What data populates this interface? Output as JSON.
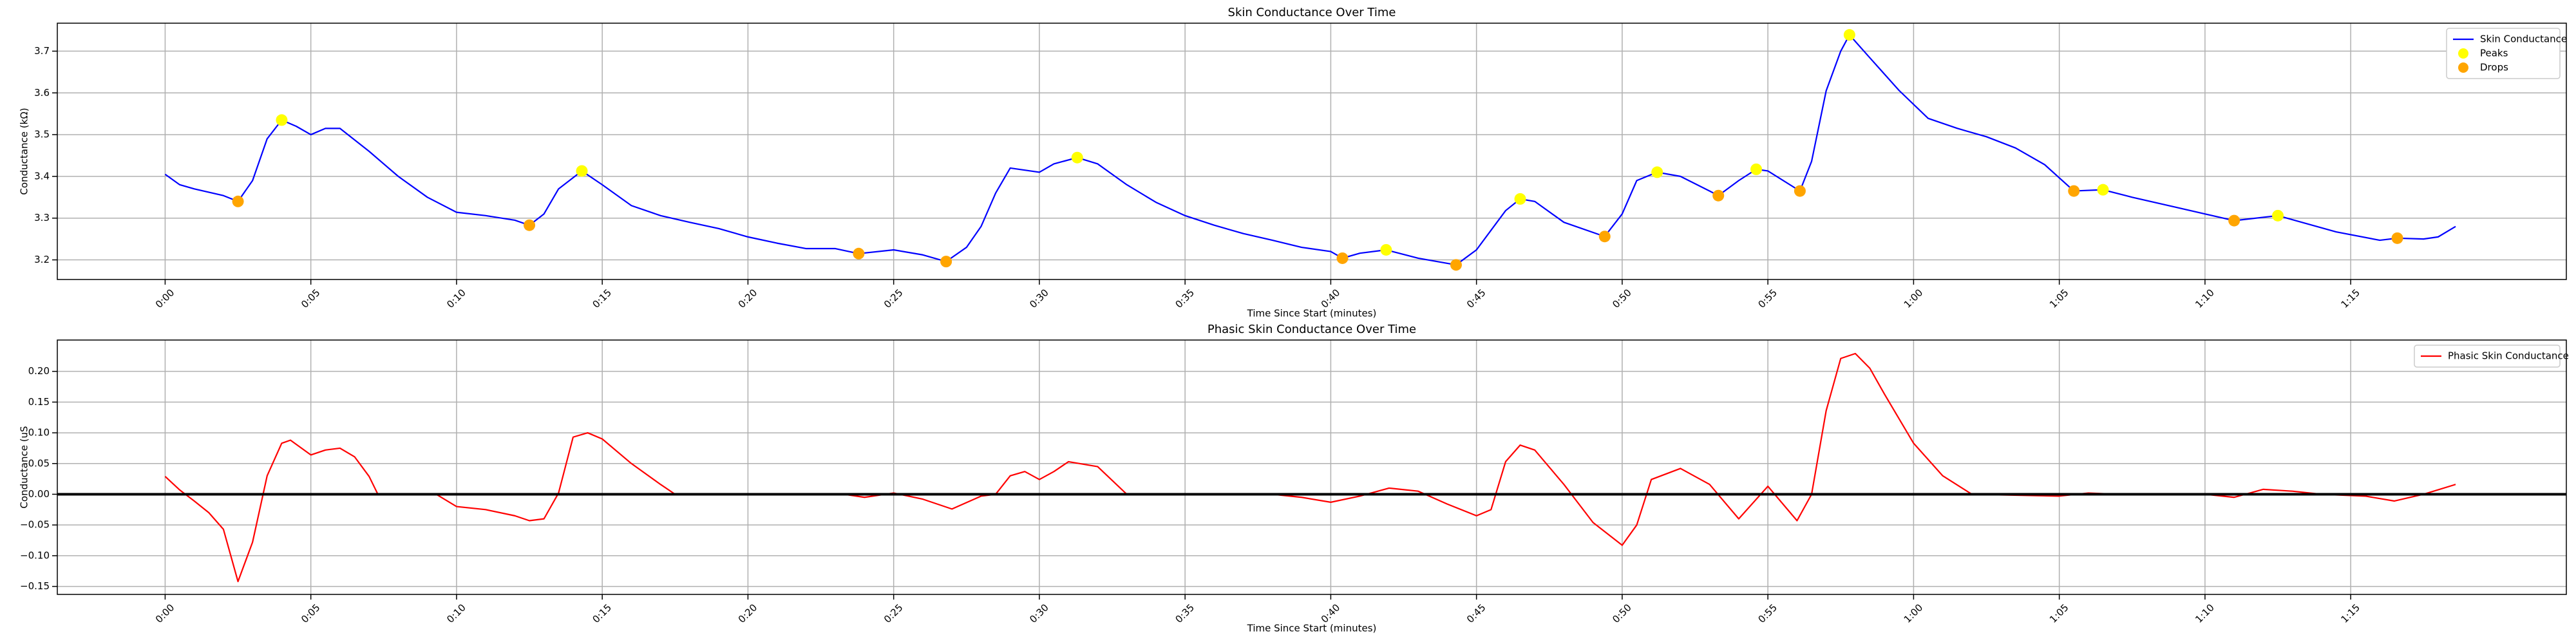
{
  "chart_data": [
    {
      "type": "line",
      "title": "Skin Conductance Over Time",
      "x_label": "Time Since Start (minutes)",
      "y_label": "Conductance (kΩ)",
      "xlim": [
        -3.7,
        82.4
      ],
      "ylim": [
        3.153,
        3.767
      ],
      "grid": true,
      "legend": "upper right",
      "xticks": [
        {
          "value": 0,
          "label": "0:00"
        },
        {
          "value": 5,
          "label": "0:05"
        },
        {
          "value": 10,
          "label": "0:10"
        },
        {
          "value": 15,
          "label": "0:15"
        },
        {
          "value": 20,
          "label": "0:20"
        },
        {
          "value": 25,
          "label": "0:25"
        },
        {
          "value": 30,
          "label": "0:30"
        },
        {
          "value": 35,
          "label": "0:35"
        },
        {
          "value": 40,
          "label": "0:40"
        },
        {
          "value": 45,
          "label": "0:45"
        },
        {
          "value": 50,
          "label": "0:50"
        },
        {
          "value": 55,
          "label": "0:55"
        },
        {
          "value": 60,
          "label": "1:00"
        },
        {
          "value": 65,
          "label": "1:05"
        },
        {
          "value": 70,
          "label": "1:10"
        },
        {
          "value": 75,
          "label": "1:15"
        }
      ],
      "yticks": [
        3.2,
        3.3,
        3.4,
        3.5,
        3.6,
        3.7
      ],
      "x": [
        0,
        0.5,
        1,
        2,
        2.5,
        3,
        3.5,
        4,
        4.5,
        5,
        5.5,
        6,
        7,
        8,
        9,
        10,
        11,
        12,
        12.5,
        13,
        13.5,
        14.3,
        15,
        16,
        17,
        18,
        19,
        20,
        21,
        22,
        23,
        23.8,
        25,
        26,
        26.8,
        27.5,
        28,
        28.5,
        29,
        30,
        30.5,
        31.3,
        32,
        33,
        34,
        35,
        36,
        37,
        38,
        39,
        40,
        40.4,
        41,
        41.9,
        43,
        44.3,
        45,
        46,
        46.5,
        47,
        48,
        49.4,
        50,
        50.5,
        51.2,
        52,
        53,
        53.3,
        54,
        54.6,
        55,
        56.1,
        56.5,
        57,
        57.5,
        57.8,
        58.5,
        59.5,
        60.5,
        61.5,
        62.5,
        63.5,
        64.5,
        65.5,
        66.5,
        67.5,
        69,
        71,
        72.5,
        74.5,
        76,
        76.6,
        77.5,
        78,
        78.6
      ],
      "series": [
        {
          "name": "Skin Conductance",
          "type": "line",
          "color": "#0000ff",
          "values": [
            3.405,
            3.38,
            3.37,
            3.354,
            3.34,
            3.39,
            3.49,
            3.535,
            3.52,
            3.5,
            3.515,
            3.515,
            3.46,
            3.4,
            3.35,
            3.314,
            3.306,
            3.295,
            3.283,
            3.31,
            3.37,
            3.413,
            3.38,
            3.33,
            3.306,
            3.29,
            3.275,
            3.255,
            3.24,
            3.227,
            3.227,
            3.215,
            3.224,
            3.212,
            3.196,
            3.23,
            3.28,
            3.36,
            3.42,
            3.41,
            3.43,
            3.445,
            3.43,
            3.38,
            3.338,
            3.306,
            3.283,
            3.263,
            3.247,
            3.23,
            3.22,
            3.204,
            3.216,
            3.224,
            3.204,
            3.188,
            3.224,
            3.318,
            3.346,
            3.34,
            3.29,
            3.256,
            3.31,
            3.39,
            3.41,
            3.4,
            3.365,
            3.354,
            3.39,
            3.417,
            3.413,
            3.365,
            3.436,
            3.605,
            3.7,
            3.739,
            3.684,
            3.606,
            3.539,
            3.515,
            3.495,
            3.468,
            3.428,
            3.365,
            3.368,
            3.35,
            3.326,
            3.294,
            3.306,
            3.267,
            3.247,
            3.252,
            3.25,
            3.255,
            3.28
          ]
        },
        {
          "name": "Peaks",
          "type": "scatter",
          "color": "#ffff00",
          "x": [
            4,
            14.3,
            31.3,
            41.9,
            46.5,
            51.2,
            54.6,
            57.8,
            66.5,
            72.5
          ],
          "values": [
            3.535,
            3.413,
            3.445,
            3.224,
            3.346,
            3.41,
            3.417,
            3.739,
            3.368,
            3.306
          ]
        },
        {
          "name": "Drops",
          "type": "scatter",
          "color": "#ffa500",
          "x": [
            2.5,
            12.5,
            23.8,
            26.8,
            40.4,
            44.3,
            49.4,
            53.3,
            56.1,
            65.5,
            71,
            76.6
          ],
          "values": [
            3.34,
            3.283,
            3.215,
            3.196,
            3.204,
            3.188,
            3.256,
            3.354,
            3.365,
            3.365,
            3.294,
            3.252
          ]
        }
      ]
    },
    {
      "type": "line",
      "title": "Phasic Skin Conductance Over Time",
      "x_label": "Time Since Start (minutes)",
      "y_label": "Conductance (uS",
      "xlim": [
        -3.7,
        82.4
      ],
      "ylim": [
        -0.163,
        0.251
      ],
      "grid": true,
      "legend": "upper right",
      "hline": 0,
      "xticks": [
        {
          "value": 0,
          "label": "0:00"
        },
        {
          "value": 5,
          "label": "0:05"
        },
        {
          "value": 10,
          "label": "0:10"
        },
        {
          "value": 15,
          "label": "0:15"
        },
        {
          "value": 20,
          "label": "0:20"
        },
        {
          "value": 25,
          "label": "0:25"
        },
        {
          "value": 30,
          "label": "0:30"
        },
        {
          "value": 35,
          "label": "0:35"
        },
        {
          "value": 40,
          "label": "0:40"
        },
        {
          "value": 45,
          "label": "0:45"
        },
        {
          "value": 50,
          "label": "0:50"
        },
        {
          "value": 55,
          "label": "0:55"
        },
        {
          "value": 60,
          "label": "1:00"
        },
        {
          "value": 65,
          "label": "1:05"
        },
        {
          "value": 70,
          "label": "1:10"
        },
        {
          "value": 75,
          "label": "1:15"
        }
      ],
      "yticks": [
        {
          "value": -0.15,
          "label": "−0.15"
        },
        {
          "value": -0.1,
          "label": "−0.10"
        },
        {
          "value": -0.05,
          "label": "−0.05"
        },
        {
          "value": 0,
          "label": "0.00"
        },
        {
          "value": 0.05,
          "label": "0.05"
        },
        {
          "value": 0.1,
          "label": "0.10"
        },
        {
          "value": 0.15,
          "label": "0.15"
        },
        {
          "value": 0.2,
          "label": "0.20"
        }
      ],
      "x": [
        0,
        0.5,
        1,
        1.5,
        2,
        2.5,
        3,
        3.5,
        4,
        4.3,
        5,
        5.5,
        6,
        6.5,
        7,
        7.3,
        9.3,
        10,
        11,
        12,
        12.5,
        13,
        13.5,
        14,
        14.5,
        15,
        16,
        17,
        17.5,
        23.3,
        24,
        25,
        26,
        27,
        28,
        28.5,
        29,
        29.5,
        30,
        30.5,
        31,
        32,
        33,
        38,
        39,
        40,
        41,
        42,
        43,
        44,
        45,
        45.5,
        46,
        46.5,
        47,
        48,
        49,
        50,
        50.5,
        51,
        52,
        53,
        54,
        55,
        56,
        56.5,
        57,
        57.5,
        58,
        58.5,
        59,
        60,
        61,
        62,
        65,
        66,
        67,
        70,
        71,
        72,
        73,
        74,
        75.5,
        76.5,
        77.5,
        78.6
      ],
      "series": [
        {
          "name": "Phasic Skin Conductance",
          "type": "line",
          "color": "#ff0000",
          "values": [
            0.029,
            0.007,
            -0.011,
            -0.03,
            -0.057,
            -0.142,
            -0.078,
            0.03,
            0.083,
            0.088,
            0.064,
            0.072,
            0.075,
            0.061,
            0.029,
            0,
            0,
            -0.02,
            -0.025,
            -0.035,
            -0.043,
            -0.04,
            0.002,
            0.093,
            0.1,
            0.09,
            0.05,
            0.016,
            0,
            0,
            -0.005,
            0.002,
            -0.008,
            -0.024,
            -0.003,
            0,
            0.03,
            0.037,
            0.024,
            0.037,
            0.053,
            0.045,
            0,
            0,
            -0.005,
            -0.013,
            -0.003,
            0.01,
            0.005,
            -0.016,
            -0.035,
            -0.025,
            0.053,
            0.08,
            0.072,
            0.016,
            -0.046,
            -0.083,
            -0.05,
            0.024,
            0.042,
            0.016,
            -0.04,
            0.013,
            -0.043,
            0,
            0.136,
            0.221,
            0.229,
            0.205,
            0.163,
            0.083,
            0.03,
            0,
            -0.003,
            0.002,
            0,
            0,
            -0.005,
            0.008,
            0.005,
            0,
            -0.003,
            -0.011,
            0,
            0.016
          ]
        }
      ]
    }
  ]
}
